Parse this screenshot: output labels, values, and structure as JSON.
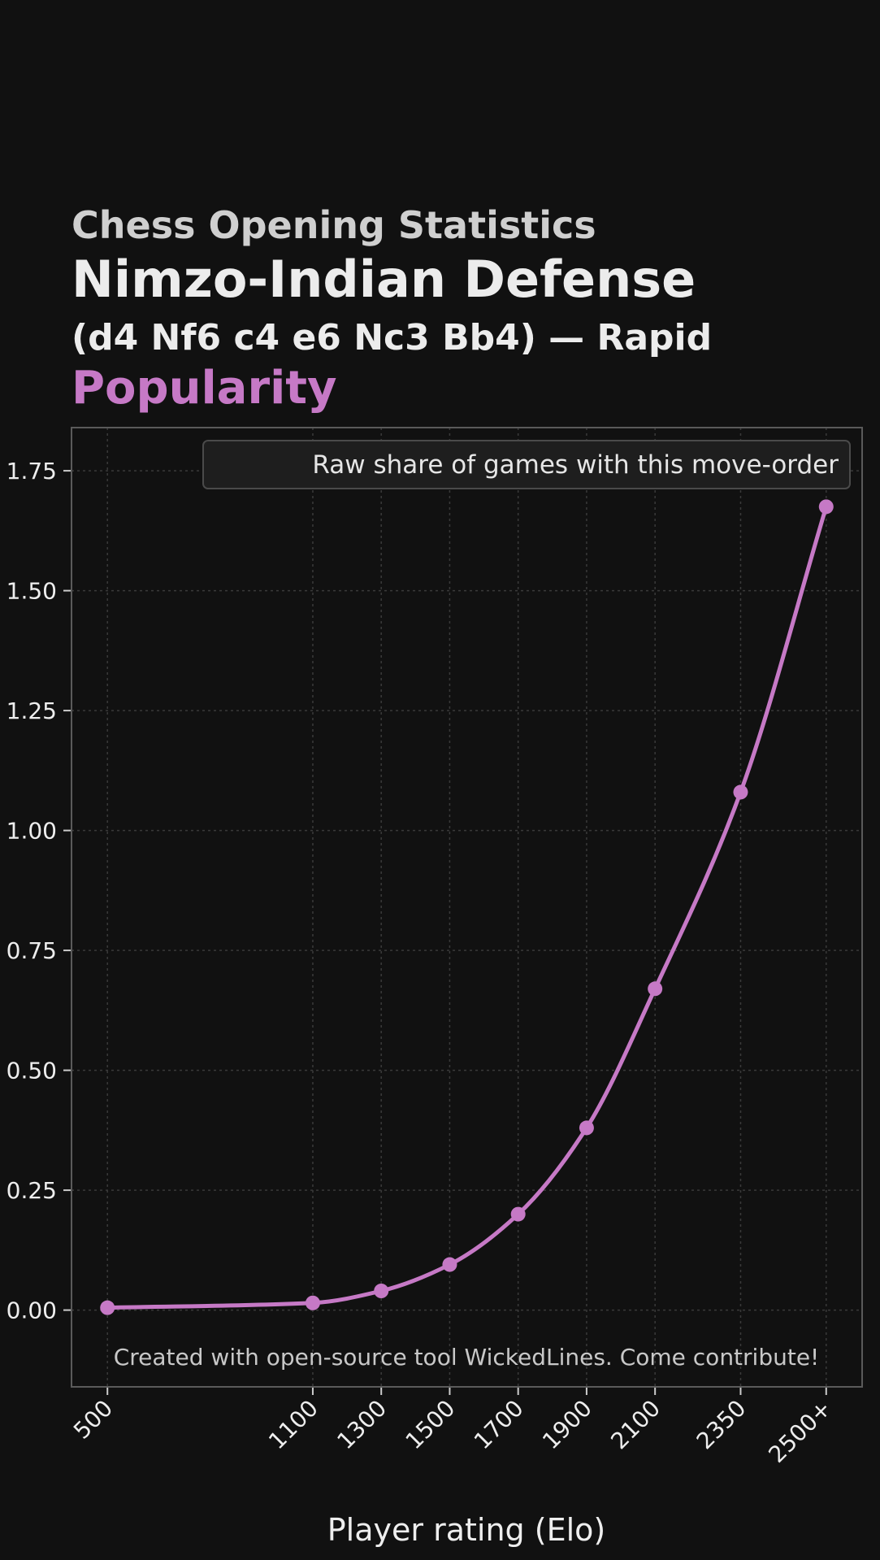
{
  "chart_data": {
    "type": "line",
    "title_lines": [
      "Chess Opening Statistics",
      "Nimzo-Indian Defense",
      "(d4 Nf6 c4 e6 Nc3 Bb4) — Rapid",
      "Popularity"
    ],
    "xlabel": "Player rating (Elo)",
    "ylabel": "",
    "categories": [
      "500",
      "1100",
      "1300",
      "1500",
      "1700",
      "1900",
      "2100",
      "2350",
      "2500+"
    ],
    "x": [
      500,
      1100,
      1300,
      1500,
      1700,
      1900,
      2100,
      2350,
      2600
    ],
    "series": [
      {
        "name": "Raw share of games with this move-order",
        "values": [
          0.005,
          0.015,
          0.04,
          0.095,
          0.2,
          0.38,
          0.67,
          1.08,
          1.675
        ]
      }
    ],
    "yticks": [
      "0.00",
      "0.25",
      "0.50",
      "0.75",
      "1.00",
      "1.25",
      "1.50",
      "1.75"
    ],
    "ytick_values": [
      0,
      0.25,
      0.5,
      0.75,
      1.0,
      1.25,
      1.5,
      1.75
    ],
    "xlim": [
      395,
      2705
    ],
    "ylim": [
      -0.16,
      1.84
    ],
    "grid": true,
    "legend_position": "top-right",
    "annotation": "Created with open-source tool WickedLines. Come contribute!",
    "colors": {
      "background": "#111111",
      "line": "#c679c6",
      "grid": "#3a3a3a",
      "frame": "#5a5a5a",
      "text": "#eeeeee"
    }
  }
}
